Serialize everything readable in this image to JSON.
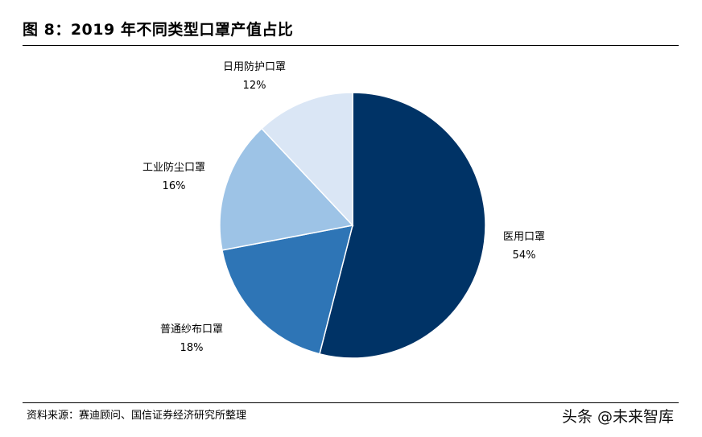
{
  "header": {
    "title": "图 8：2019 年不同类型口罩产值占比"
  },
  "footer": {
    "source": "资料来源：赛迪顾问、国信证券经济研究所整理",
    "watermark": "头条 @未来智库"
  },
  "chart_data": {
    "type": "pie",
    "title": "图 8：2019 年不同类型口罩产值占比",
    "start_angle": "12 o'clock",
    "direction": "clockwise",
    "slices": [
      {
        "label": "医用口罩",
        "value": 54,
        "value_label": "54%",
        "color": "#003366"
      },
      {
        "label": "普通纱布口罩",
        "value": 18,
        "value_label": "18%",
        "color": "#2E75B6"
      },
      {
        "label": "工业防尘口罩",
        "value": 16,
        "value_label": "16%",
        "color": "#9DC3E6"
      },
      {
        "label": "日用防护口罩",
        "value": 12,
        "value_label": "12%",
        "color": "#DAE6F5"
      }
    ]
  }
}
